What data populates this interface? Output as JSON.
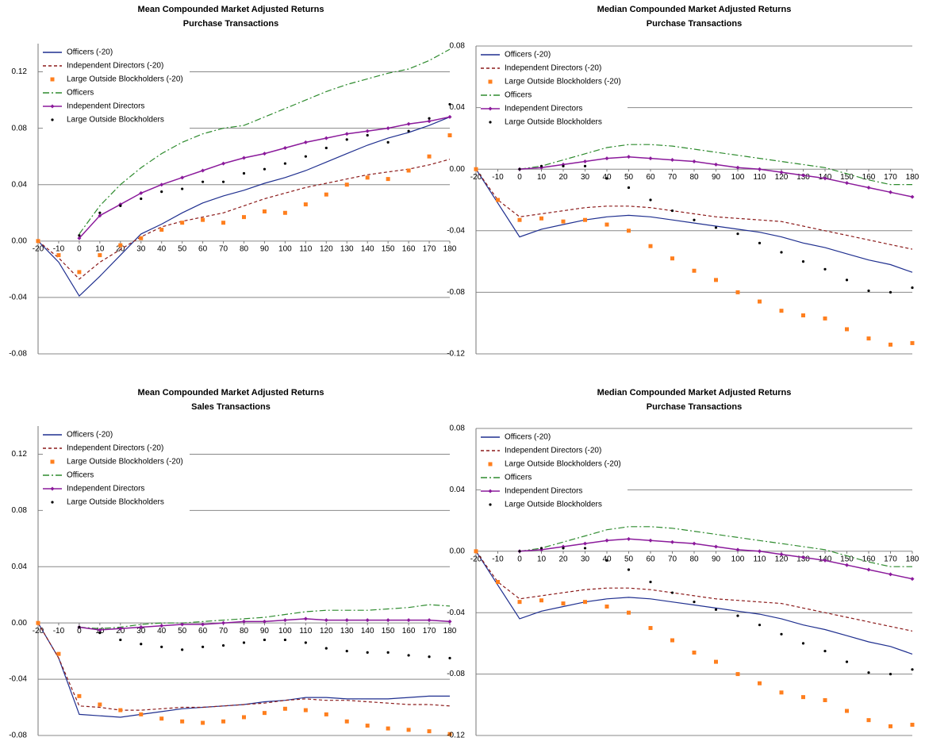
{
  "chart_data": [
    {
      "type": "line",
      "title": "Mean Compounded Market Adjusted Returns",
      "subtitle": "Purchase Transactions",
      "x": [
        -20,
        -10,
        0,
        10,
        20,
        30,
        40,
        50,
        60,
        70,
        80,
        90,
        100,
        110,
        120,
        130,
        140,
        150,
        160,
        170,
        180
      ],
      "xlim": [
        -20,
        180
      ],
      "xticks": [
        -20,
        -10,
        0,
        10,
        20,
        30,
        40,
        50,
        60,
        70,
        80,
        90,
        100,
        110,
        120,
        130,
        140,
        150,
        160,
        170,
        180
      ],
      "ylim": [
        -0.08,
        0.14
      ],
      "yticks": [
        0.12,
        0.08,
        0.04,
        {
          "value": 0,
          "label": "0.00"
        },
        -0.04,
        -0.08
      ],
      "grid": true,
      "legend": "upper left",
      "series": [
        {
          "name": "Officers (-20)",
          "color": "#1f2f8f",
          "line_style": "solid",
          "marker": "none",
          "values": [
            0,
            -0.015,
            -0.039,
            -0.025,
            -0.01,
            0.005,
            0.012,
            0.02,
            0.027,
            0.032,
            0.036,
            0.041,
            0.045,
            0.05,
            0.056,
            0.062,
            0.068,
            0.073,
            0.077,
            0.082,
            0.088
          ]
        },
        {
          "name": "Independent Directors (-20)",
          "color": "#8b1a1a",
          "line_style": "dashed",
          "marker": "none",
          "values": [
            0,
            -0.012,
            -0.027,
            -0.015,
            -0.006,
            0.003,
            0.01,
            0.014,
            0.017,
            0.02,
            0.025,
            0.03,
            0.034,
            0.038,
            0.041,
            0.044,
            0.047,
            0.049,
            0.051,
            0.054,
            0.058
          ]
        },
        {
          "name": "Large Outside Blockholders (-20)",
          "color": "#ff7f1e",
          "line_style": "none",
          "marker": "square",
          "values": [
            0,
            -0.01,
            -0.022,
            -0.01,
            -0.003,
            0.002,
            0.008,
            0.013,
            0.015,
            0.013,
            0.017,
            0.021,
            0.02,
            0.026,
            0.033,
            0.04,
            0.045,
            0.044,
            0.05,
            0.06,
            0.075
          ]
        },
        {
          "name": "Officers",
          "color": "#2e8b2e",
          "line_style": "dashdot",
          "marker": "none",
          "values": [
            null,
            null,
            0.005,
            0.025,
            0.04,
            0.052,
            0.062,
            0.07,
            0.076,
            0.08,
            0.082,
            0.088,
            0.094,
            0.1,
            0.106,
            0.111,
            0.115,
            0.119,
            0.122,
            0.128,
            0.136
          ]
        },
        {
          "name": "Independent Directors",
          "color": "#8b1a9b",
          "line_style": "solid",
          "marker": "diamond",
          "values": [
            null,
            null,
            0.002,
            0.018,
            0.026,
            0.034,
            0.04,
            0.045,
            0.05,
            0.055,
            0.059,
            0.062,
            0.066,
            0.07,
            0.073,
            0.076,
            0.078,
            0.08,
            0.083,
            0.085,
            0.088
          ]
        },
        {
          "name": "Large Outside Blockholders",
          "color": "#000000",
          "line_style": "none",
          "marker": "dot",
          "values": [
            null,
            null,
            0.004,
            0.02,
            0.025,
            0.03,
            0.035,
            0.037,
            0.042,
            0.042,
            0.048,
            0.051,
            0.055,
            0.06,
            0.066,
            0.072,
            0.075,
            0.07,
            0.078,
            0.087,
            0.097
          ]
        }
      ]
    },
    {
      "type": "line",
      "title": "Median Compounded Market Adjusted Returns",
      "subtitle": "Purchase Transactions",
      "x": [
        -20,
        -10,
        0,
        10,
        20,
        30,
        40,
        50,
        60,
        70,
        80,
        90,
        100,
        110,
        120,
        130,
        140,
        150,
        160,
        170,
        180
      ],
      "xlim": [
        -20,
        180
      ],
      "xticks": [
        -20,
        -10,
        0,
        10,
        20,
        30,
        40,
        50,
        60,
        70,
        80,
        90,
        100,
        110,
        120,
        130,
        140,
        150,
        160,
        170,
        180
      ],
      "ylim": [
        -0.12,
        0.08
      ],
      "yticks": [
        0.08,
        0.04,
        {
          "value": 0,
          "label": "0.00"
        },
        -0.04,
        -0.08,
        -0.12
      ],
      "grid": true,
      "legend": "upper left",
      "series": [
        {
          "name": "Officers (-20)",
          "color": "#1f2f8f",
          "line_style": "solid",
          "marker": "none",
          "values": [
            0,
            -0.022,
            -0.044,
            -0.039,
            -0.036,
            -0.033,
            -0.031,
            -0.03,
            -0.031,
            -0.033,
            -0.035,
            -0.037,
            -0.039,
            -0.041,
            -0.044,
            -0.048,
            -0.051,
            -0.055,
            -0.059,
            -0.062,
            -0.067
          ]
        },
        {
          "name": "Independent Directors (-20)",
          "color": "#8b1a1a",
          "line_style": "dashed",
          "marker": "none",
          "values": [
            0,
            -0.02,
            -0.031,
            -0.029,
            -0.027,
            -0.025,
            -0.024,
            -0.024,
            -0.025,
            -0.027,
            -0.029,
            -0.031,
            -0.032,
            -0.033,
            -0.034,
            -0.037,
            -0.04,
            -0.043,
            -0.046,
            -0.049,
            -0.052
          ]
        },
        {
          "name": "Large Outside Blockholders (-20)",
          "color": "#ff7f1e",
          "line_style": "none",
          "marker": "square",
          "values": [
            0,
            -0.02,
            -0.033,
            -0.032,
            -0.034,
            -0.033,
            -0.036,
            -0.04,
            -0.05,
            -0.058,
            -0.066,
            -0.072,
            -0.08,
            -0.086,
            -0.092,
            -0.095,
            -0.097,
            -0.104,
            -0.11,
            -0.114,
            -0.113
          ]
        },
        {
          "name": "Officers",
          "color": "#2e8b2e",
          "line_style": "dashdot",
          "marker": "none",
          "values": [
            null,
            null,
            0,
            0.002,
            0.006,
            0.01,
            0.014,
            0.016,
            0.016,
            0.015,
            0.013,
            0.011,
            0.009,
            0.007,
            0.005,
            0.003,
            0.001,
            -0.003,
            -0.007,
            -0.01,
            -0.01
          ]
        },
        {
          "name": "Independent Directors",
          "color": "#8b1a9b",
          "line_style": "solid",
          "marker": "diamond",
          "values": [
            null,
            null,
            0,
            0.001,
            0.003,
            0.005,
            0.007,
            0.008,
            0.007,
            0.006,
            0.005,
            0.003,
            0.001,
            0,
            -0.002,
            -0.004,
            -0.006,
            -0.009,
            -0.012,
            -0.015,
            -0.018
          ]
        },
        {
          "name": "Large Outside Blockholders",
          "color": "#000000",
          "line_style": "none",
          "marker": "dot",
          "values": [
            null,
            null,
            0,
            0.002,
            0.002,
            0.002,
            -0.006,
            -0.012,
            -0.02,
            -0.027,
            -0.033,
            -0.038,
            -0.042,
            -0.048,
            -0.054,
            -0.06,
            -0.065,
            -0.072,
            -0.079,
            -0.08,
            -0.077
          ]
        }
      ]
    },
    {
      "type": "line",
      "title": "Mean Compounded Market Adjusted Returns",
      "subtitle": "Sales Transactions",
      "x": [
        -20,
        -10,
        0,
        10,
        20,
        30,
        40,
        50,
        60,
        70,
        80,
        90,
        100,
        110,
        120,
        130,
        140,
        150,
        160,
        170,
        180
      ],
      "xlim": [
        -20,
        180
      ],
      "xticks": [
        -20,
        -10,
        0,
        10,
        20,
        30,
        40,
        50,
        60,
        70,
        80,
        90,
        100,
        110,
        120,
        130,
        140,
        150,
        160,
        170,
        180
      ],
      "ylim": [
        -0.08,
        0.14
      ],
      "yticks": [
        0.12,
        0.08,
        0.04,
        {
          "value": 0,
          "label": "0.00"
        },
        -0.04,
        -0.08
      ],
      "grid": true,
      "legend": "upper left",
      "series": [
        {
          "name": "Officers (-20)",
          "color": "#1f2f8f",
          "line_style": "solid",
          "marker": "none",
          "values": [
            0,
            -0.025,
            -0.065,
            -0.066,
            -0.067,
            -0.065,
            -0.063,
            -0.061,
            -0.06,
            -0.059,
            -0.058,
            -0.056,
            -0.055,
            -0.053,
            -0.053,
            -0.054,
            -0.054,
            -0.054,
            -0.053,
            -0.052,
            -0.052
          ]
        },
        {
          "name": "Independent Directors (-20)",
          "color": "#8b1a1a",
          "line_style": "dashed",
          "marker": "none",
          "values": [
            0,
            -0.025,
            -0.059,
            -0.06,
            -0.062,
            -0.062,
            -0.061,
            -0.06,
            -0.06,
            -0.059,
            -0.058,
            -0.057,
            -0.055,
            -0.054,
            -0.055,
            -0.055,
            -0.056,
            -0.057,
            -0.058,
            -0.058,
            -0.059
          ]
        },
        {
          "name": "Large Outside Blockholders (-20)",
          "color": "#ff7f1e",
          "line_style": "none",
          "marker": "square",
          "values": [
            0,
            -0.022,
            -0.052,
            -0.058,
            -0.062,
            -0.065,
            -0.068,
            -0.07,
            -0.071,
            -0.07,
            -0.067,
            -0.064,
            -0.061,
            -0.062,
            -0.065,
            -0.07,
            -0.073,
            -0.075,
            -0.076,
            -0.077,
            -0.079
          ]
        },
        {
          "name": "Officers",
          "color": "#2e8b2e",
          "line_style": "dashdot",
          "marker": "none",
          "values": [
            null,
            null,
            -0.003,
            -0.004,
            -0.003,
            -0.001,
            0,
            0,
            0.001,
            0.002,
            0.003,
            0.004,
            0.006,
            0.008,
            0.009,
            0.009,
            0.009,
            0.01,
            0.011,
            0.013,
            0.012
          ]
        },
        {
          "name": "Independent Directors",
          "color": "#8b1a9b",
          "line_style": "solid",
          "marker": "diamond",
          "values": [
            null,
            null,
            -0.003,
            -0.005,
            -0.004,
            -0.003,
            -0.002,
            -0.001,
            -0.001,
            0,
            0.001,
            0.001,
            0.002,
            0.003,
            0.002,
            0.002,
            0.002,
            0.002,
            0.002,
            0.002,
            0.001
          ]
        },
        {
          "name": "Large Outside Blockholders",
          "color": "#000000",
          "line_style": "none",
          "marker": "dot",
          "values": [
            null,
            null,
            -0.003,
            -0.007,
            -0.012,
            -0.015,
            -0.017,
            -0.019,
            -0.017,
            -0.016,
            -0.014,
            -0.012,
            -0.012,
            -0.014,
            -0.018,
            -0.02,
            -0.021,
            -0.021,
            -0.023,
            -0.024,
            -0.025
          ]
        }
      ]
    },
    {
      "type": "line",
      "title": "Median Compounded Market Adjusted Returns",
      "subtitle": "Purchase Transactions",
      "x": [
        -20,
        -10,
        0,
        10,
        20,
        30,
        40,
        50,
        60,
        70,
        80,
        90,
        100,
        110,
        120,
        130,
        140,
        150,
        160,
        170,
        180
      ],
      "xlim": [
        -20,
        180
      ],
      "xticks": [
        -20,
        -10,
        0,
        10,
        20,
        30,
        40,
        50,
        60,
        70,
        80,
        90,
        100,
        110,
        120,
        130,
        140,
        150,
        160,
        170,
        180
      ],
      "ylim": [
        -0.12,
        0.08
      ],
      "yticks": [
        0.08,
        0.04,
        {
          "value": 0,
          "label": "0.00"
        },
        -0.04,
        -0.08,
        -0.12
      ],
      "grid": true,
      "legend": "upper left",
      "series": [
        {
          "name": "Officers (-20)",
          "color": "#1f2f8f",
          "line_style": "solid",
          "marker": "none",
          "values": [
            0,
            -0.022,
            -0.044,
            -0.039,
            -0.036,
            -0.033,
            -0.031,
            -0.03,
            -0.031,
            -0.033,
            -0.035,
            -0.037,
            -0.039,
            -0.041,
            -0.044,
            -0.048,
            -0.051,
            -0.055,
            -0.059,
            -0.062,
            -0.067
          ]
        },
        {
          "name": "Independent Directors (-20)",
          "color": "#8b1a1a",
          "line_style": "dashed",
          "marker": "none",
          "values": [
            0,
            -0.02,
            -0.031,
            -0.029,
            -0.027,
            -0.025,
            -0.024,
            -0.024,
            -0.025,
            -0.027,
            -0.029,
            -0.031,
            -0.032,
            -0.033,
            -0.034,
            -0.037,
            -0.04,
            -0.043,
            -0.046,
            -0.049,
            -0.052
          ]
        },
        {
          "name": "Large Outside Blockholders (-20)",
          "color": "#ff7f1e",
          "line_style": "none",
          "marker": "square",
          "values": [
            0,
            -0.02,
            -0.033,
            -0.032,
            -0.034,
            -0.033,
            -0.036,
            -0.04,
            -0.05,
            -0.058,
            -0.066,
            -0.072,
            -0.08,
            -0.086,
            -0.092,
            -0.095,
            -0.097,
            -0.104,
            -0.11,
            -0.114,
            -0.113
          ]
        },
        {
          "name": "Officers",
          "color": "#2e8b2e",
          "line_style": "dashdot",
          "marker": "none",
          "values": [
            null,
            null,
            0,
            0.002,
            0.006,
            0.01,
            0.014,
            0.016,
            0.016,
            0.015,
            0.013,
            0.011,
            0.009,
            0.007,
            0.005,
            0.003,
            0.001,
            -0.003,
            -0.007,
            -0.01,
            -0.01
          ]
        },
        {
          "name": "Independent Directors",
          "color": "#8b1a9b",
          "line_style": "solid",
          "marker": "diamond",
          "values": [
            null,
            null,
            0,
            0.001,
            0.003,
            0.005,
            0.007,
            0.008,
            0.007,
            0.006,
            0.005,
            0.003,
            0.001,
            0,
            -0.002,
            -0.004,
            -0.006,
            -0.009,
            -0.012,
            -0.015,
            -0.018
          ]
        },
        {
          "name": "Large Outside Blockholders",
          "color": "#000000",
          "line_style": "none",
          "marker": "dot",
          "values": [
            null,
            null,
            0,
            0.002,
            0.002,
            0.002,
            -0.006,
            -0.012,
            -0.02,
            -0.027,
            -0.033,
            -0.038,
            -0.042,
            -0.048,
            -0.054,
            -0.06,
            -0.065,
            -0.072,
            -0.079,
            -0.08,
            -0.077
          ]
        }
      ]
    }
  ]
}
